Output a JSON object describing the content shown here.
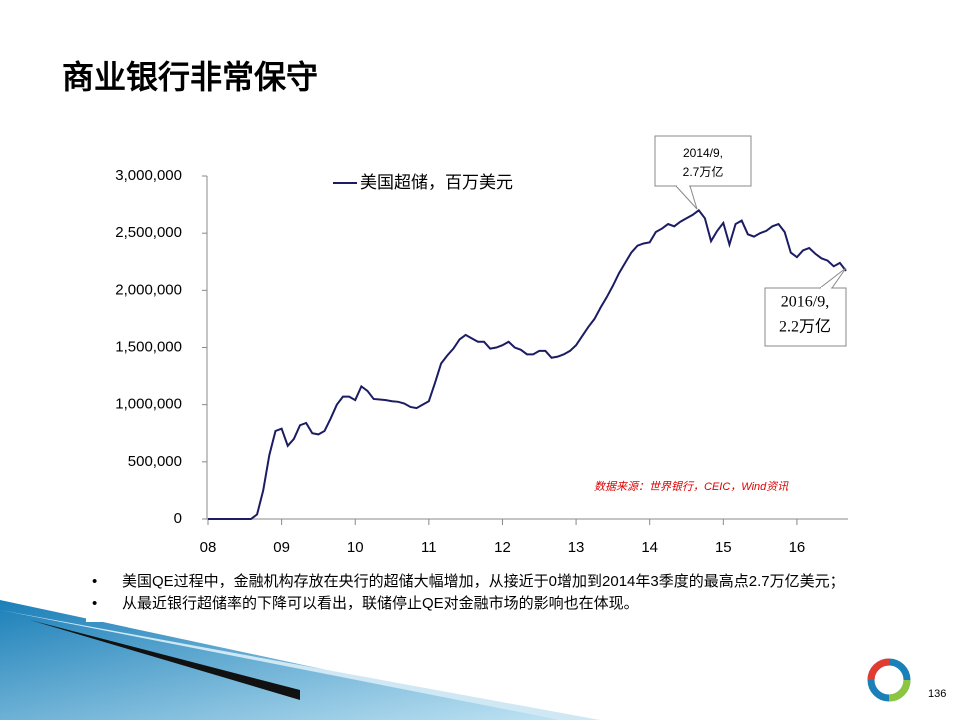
{
  "title": "商业银行非常保守",
  "chart_data": {
    "type": "line",
    "categories": [
      "08",
      null,
      null,
      null,
      null,
      null,
      null,
      null,
      null,
      null,
      null,
      null,
      "09",
      null,
      null,
      null,
      null,
      null,
      null,
      null,
      null,
      null,
      null,
      null,
      "10",
      null,
      null,
      null,
      null,
      null,
      null,
      null,
      null,
      null,
      null,
      null,
      "11",
      null,
      null,
      null,
      null,
      null,
      null,
      null,
      null,
      null,
      null,
      null,
      "12",
      null,
      null,
      null,
      null,
      null,
      null,
      null,
      null,
      null,
      null,
      null,
      "13",
      null,
      null,
      null,
      null,
      null,
      null,
      null,
      null,
      null,
      null,
      null,
      "14",
      null,
      null,
      null,
      null,
      null,
      null,
      null,
      null,
      null,
      null,
      null,
      "15",
      null,
      null,
      null,
      null,
      null,
      null,
      null,
      null,
      null,
      null,
      null,
      "16",
      null,
      null,
      null,
      null,
      null,
      null,
      null,
      null
    ],
    "series": [
      {
        "name": "美国超储，百万美元",
        "color": "#1c1c64",
        "values": [
          0,
          0,
          0,
          0,
          0,
          0,
          0,
          0,
          40000,
          250000,
          560000,
          770000,
          790000,
          640000,
          700000,
          820000,
          840000,
          750000,
          740000,
          770000,
          880000,
          1000000,
          1070000,
          1070000,
          1040000,
          1160000,
          1120000,
          1050000,
          1045000,
          1040000,
          1030000,
          1025000,
          1010000,
          980000,
          970000,
          1000000,
          1030000,
          1190000,
          1360000,
          1430000,
          1490000,
          1570000,
          1610000,
          1580000,
          1550000,
          1550000,
          1490000,
          1500000,
          1520000,
          1550000,
          1500000,
          1480000,
          1440000,
          1440000,
          1470000,
          1470000,
          1410000,
          1420000,
          1440000,
          1470000,
          1520000,
          1600000,
          1680000,
          1750000,
          1850000,
          1940000,
          2040000,
          2150000,
          2240000,
          2330000,
          2390000,
          2410000,
          2420000,
          2510000,
          2540000,
          2580000,
          2560000,
          2600000,
          2630000,
          2660000,
          2700000,
          2630000,
          2430000,
          2520000,
          2590000,
          2400000,
          2580000,
          2610000,
          2490000,
          2470000,
          2500000,
          2520000,
          2560000,
          2580000,
          2510000,
          2330000,
          2290000,
          2350000,
          2370000,
          2320000,
          2280000,
          2260000,
          2210000,
          2240000,
          2170000
        ]
      }
    ],
    "ylim": [
      0,
      3000000
    ],
    "yticks": [
      0,
      {
        "value": 500000,
        "label": "500,000"
      },
      {
        "value": 1000000,
        "label": "1,000,000"
      },
      {
        "value": 1500000,
        "label": "1,500,000"
      },
      {
        "value": 2000000,
        "label": "2,000,000"
      },
      {
        "value": 2500000,
        "label": "2,500,000"
      },
      {
        "value": 3000000,
        "label": "3,000,000"
      }
    ],
    "annotations": [
      {
        "lines": [
          "2014/9,",
          "2.7万亿"
        ]
      },
      {
        "lines": [
          "2016/9,",
          "2.2万亿"
        ]
      }
    ],
    "source": "数据来源：世界银行，CEIC，Wind资讯"
  },
  "bullets": [
    "美国QE过程中，金融机构存放在央行的超储大幅增加，从接近于0增加到2014年3季度的最高点2.7万亿美元；",
    "从最近银行超储率的下降可以看出，联储停止QE对金融市场的影响也在体现。"
  ],
  "page_number": 136
}
